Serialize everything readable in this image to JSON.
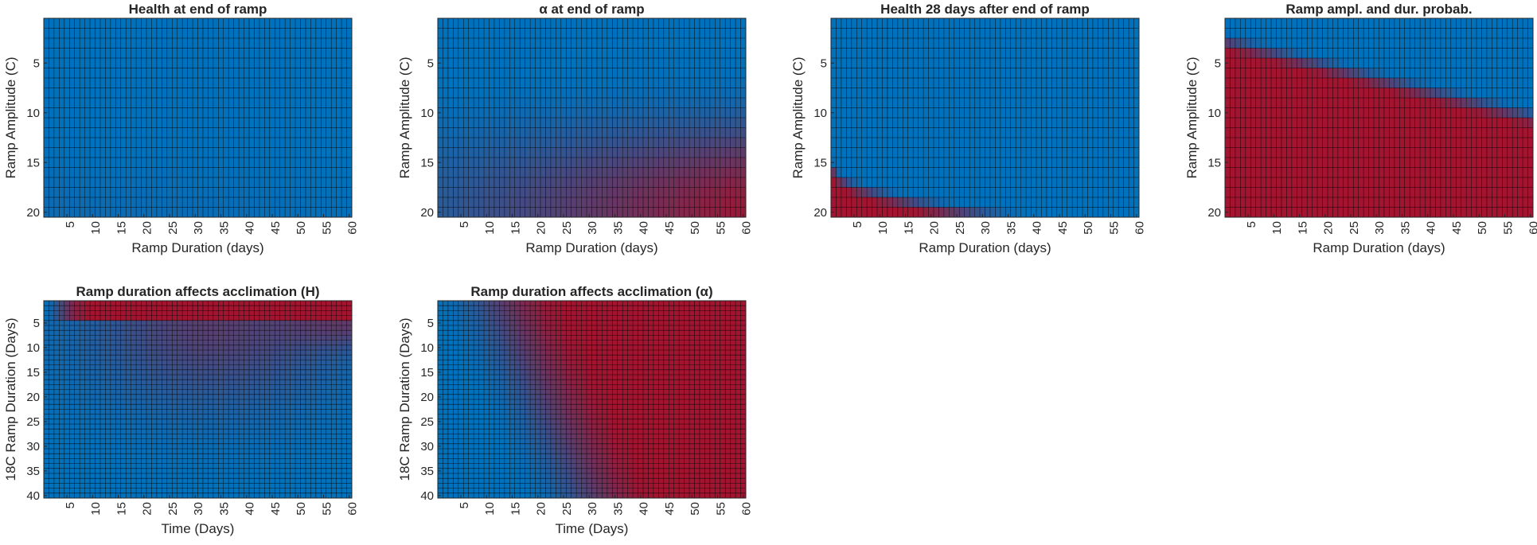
{
  "colors": {
    "low": "#0072BD",
    "high": "#A2142F",
    "cell_edge": "#000000",
    "axis": "#262626"
  },
  "chart_data": [
    {
      "id": "p1",
      "type": "heatmap",
      "title": "Health at end of ramp",
      "xlabel": "Ramp Duration (days)",
      "ylabel": "Ramp Amplitude (C)",
      "x_range": [
        1,
        60
      ],
      "y_range": [
        1,
        20
      ],
      "y_reversed": true,
      "grid": true,
      "xticks": [
        "5",
        "10",
        "15",
        "20",
        "25",
        "30",
        "35",
        "40",
        "45",
        "50",
        "55",
        "60"
      ],
      "yticks": [
        "5",
        "10",
        "15",
        "20"
      ],
      "value_fn": "health_end",
      "value_description_samples": [
        {
          "x": 1,
          "y": 20,
          "value": 0.08
        },
        {
          "x": 30,
          "y": 20,
          "value": 0.03
        },
        {
          "x": 30,
          "y": 5,
          "value": 0.0
        }
      ]
    },
    {
      "id": "p2",
      "type": "heatmap",
      "title": "α at end of ramp",
      "xlabel": "Ramp Duration (days)",
      "ylabel": "Ramp Amplitude (C)",
      "x_range": [
        1,
        60
      ],
      "y_range": [
        1,
        20
      ],
      "y_reversed": true,
      "grid": true,
      "xticks": [
        "5",
        "10",
        "15",
        "20",
        "25",
        "30",
        "35",
        "40",
        "45",
        "50",
        "55",
        "60"
      ],
      "yticks": [
        "5",
        "10",
        "15",
        "20"
      ],
      "value_fn": "alpha_end",
      "value_description_samples": [
        {
          "x": 60,
          "y": 20,
          "value": 0.85
        },
        {
          "x": 5,
          "y": 20,
          "value": 0.2
        },
        {
          "x": 60,
          "y": 5,
          "value": 0.3
        }
      ]
    },
    {
      "id": "p3",
      "type": "heatmap",
      "title": "Health 28 days after end of ramp",
      "xlabel": "Ramp Duration (days)",
      "ylabel": "Ramp Amplitude (C)",
      "x_range": [
        1,
        60
      ],
      "y_range": [
        1,
        20
      ],
      "y_reversed": true,
      "grid": true,
      "xticks": [
        "5",
        "10",
        "15",
        "20",
        "25",
        "30",
        "35",
        "40",
        "45",
        "50",
        "55",
        "60"
      ],
      "yticks": [
        "5",
        "10",
        "15",
        "20"
      ],
      "value_fn": "health_28",
      "value_description_samples": [
        {
          "x": 1,
          "y": 20,
          "value": 1.0
        },
        {
          "x": 10,
          "y": 19,
          "value": 0.95
        },
        {
          "x": 20,
          "y": 20,
          "value": 0.3
        },
        {
          "x": 30,
          "y": 10,
          "value": 0.0
        }
      ]
    },
    {
      "id": "p4",
      "type": "heatmap",
      "title": "Ramp ampl. and dur. probab.",
      "xlabel": "Ramp Duration (days)",
      "ylabel": "Ramp Amplitude (C)",
      "x_range": [
        1,
        60
      ],
      "y_range": [
        1,
        20
      ],
      "y_reversed": true,
      "grid": true,
      "xticks": [
        "5",
        "10",
        "15",
        "20",
        "25",
        "30",
        "35",
        "40",
        "45",
        "50",
        "55",
        "60"
      ],
      "yticks": [
        "5",
        "10",
        "15",
        "20"
      ],
      "value_fn": "prob",
      "value_description_samples": [
        {
          "x": 30,
          "y": 1,
          "value": 0.0
        },
        {
          "x": 5,
          "y": 10,
          "value": 1.0
        },
        {
          "x": 55,
          "y": 8,
          "value": 0.4
        }
      ]
    },
    {
      "id": "p5",
      "type": "heatmap",
      "title": "Ramp duration affects acclimation (H)",
      "xlabel": "Time (Days)",
      "ylabel": "18C Ramp Duration (Days)",
      "x_range": [
        1,
        60
      ],
      "y_range": [
        1,
        40
      ],
      "y_reversed": true,
      "grid": true,
      "xticks": [
        "5",
        "10",
        "15",
        "20",
        "25",
        "30",
        "35",
        "40",
        "45",
        "50",
        "55",
        "60"
      ],
      "yticks": [
        "5",
        "10",
        "15",
        "20",
        "25",
        "30",
        "35",
        "40"
      ],
      "value_fn": "accl_h",
      "value_description_samples": [
        {
          "x": 40,
          "y": 2,
          "value": 1.0
        },
        {
          "x": 35,
          "y": 20,
          "value": 0.35
        },
        {
          "x": 5,
          "y": 35,
          "value": 0.0
        }
      ]
    },
    {
      "id": "p6",
      "type": "heatmap",
      "title": "Ramp duration affects acclimation (α)",
      "xlabel": "Time (Days)",
      "ylabel": "18C Ramp Duration (Days)",
      "x_range": [
        1,
        60
      ],
      "y_range": [
        1,
        40
      ],
      "y_reversed": true,
      "grid": true,
      "xticks": [
        "5",
        "10",
        "15",
        "20",
        "25",
        "30",
        "35",
        "40",
        "45",
        "50",
        "55",
        "60"
      ],
      "yticks": [
        "5",
        "10",
        "15",
        "20",
        "25",
        "30",
        "35",
        "40"
      ],
      "value_fn": "accl_a",
      "value_description_samples": [
        {
          "x": 5,
          "y": 20,
          "value": 0.0
        },
        {
          "x": 25,
          "y": 20,
          "value": 0.5
        },
        {
          "x": 55,
          "y": 35,
          "value": 1.0
        }
      ]
    }
  ]
}
